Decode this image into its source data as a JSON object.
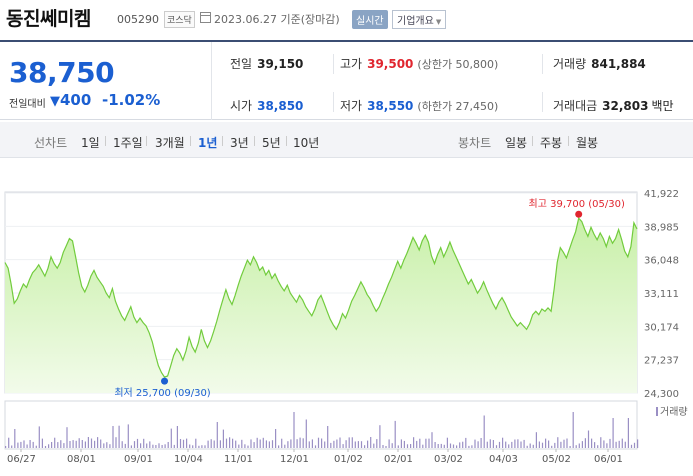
{
  "header": {
    "name": "동진쎄미켐",
    "code": "005290",
    "market": "코스닥",
    "date": "2023.06.27 기준(장마감)",
    "realtime": "실시간",
    "company_info": "기업개요"
  },
  "summary": {
    "price": "38,750",
    "change_label": "전일대비",
    "change_amount": "400",
    "change_arrow": "▼",
    "change_pct": "-1.02%",
    "prev_label": "전일",
    "prev": "39,150",
    "high_label": "고가",
    "high": "39,500",
    "upper_limit": "(상한가 50,800)",
    "volume_label": "거래량",
    "volume": "841,884",
    "open_label": "시가",
    "open": "38,850",
    "low_label": "저가",
    "low": "38,550",
    "lower_limit": "(하한가 27,450)",
    "amount_label": "거래대금",
    "amount": "32,803",
    "amount_unit": "백만"
  },
  "tabs": {
    "line_label": "선차트",
    "line": [
      "1일",
      "1주일",
      "3개월",
      "1년",
      "3년",
      "5년",
      "10년"
    ],
    "active": "1년",
    "candle_label": "봉차트",
    "candle": [
      "일봉",
      "주봉",
      "월봉"
    ]
  },
  "chart_data": {
    "type": "area",
    "colors": {
      "line": "#72cc3d",
      "fill_top": "#c8f0a8",
      "fill_bottom": "#f2fbea",
      "volume": "#9a8fc4"
    },
    "y_ticks": [
      "41,922",
      "38,985",
      "36,048",
      "33,111",
      "30,174",
      "27,237",
      "24,300"
    ],
    "ylim": [
      24300,
      41922
    ],
    "x_ticks": [
      "06/27",
      "08/01",
      "09/01",
      "10/04",
      "11/01",
      "12/01",
      "01/02",
      "02/01",
      "03/02",
      "04/03",
      "05/02",
      "06/01"
    ],
    "high_annotation": "최고 39,700 (05/30)",
    "low_annotation": "최저 25,700 (09/30)",
    "high": {
      "date": "05/30",
      "value": 39700
    },
    "low": {
      "date": "09/30",
      "value": 25700
    },
    "volume_legend": "거래량",
    "values": [
      35800,
      35300,
      33900,
      32200,
      32600,
      33300,
      33900,
      33600,
      34300,
      34900,
      35200,
      35600,
      35100,
      34600,
      35300,
      36300,
      35700,
      35300,
      35800,
      36700,
      37300,
      37900,
      37700,
      36300,
      34900,
      33700,
      33200,
      33800,
      34600,
      35100,
      34500,
      34100,
      33700,
      33100,
      32700,
      33500,
      32400,
      31700,
      31100,
      30700,
      31300,
      31900,
      31000,
      30500,
      30900,
      30500,
      30200,
      29600,
      28800,
      27700,
      26700,
      26100,
      25700,
      25800,
      26700,
      27600,
      28200,
      27800,
      27200,
      28000,
      29200,
      28400,
      27900,
      28700,
      29900,
      28900,
      28300,
      28900,
      29700,
      30600,
      31600,
      32500,
      33400,
      32600,
      32100,
      32900,
      33800,
      34600,
      35300,
      36000,
      35600,
      36300,
      35800,
      35100,
      35400,
      34700,
      35100,
      34400,
      34800,
      34200,
      33700,
      33300,
      33800,
      33100,
      32700,
      32300,
      32900,
      32500,
      31900,
      31500,
      31100,
      31700,
      32500,
      32900,
      32200,
      31500,
      30800,
      30300,
      29900,
      30500,
      31300,
      30900,
      31600,
      32400,
      32900,
      33500,
      34100,
      33600,
      33000,
      32600,
      32000,
      31500,
      31900,
      32600,
      33200,
      33900,
      34500,
      35200,
      35900,
      35300,
      36000,
      36600,
      37300,
      38000,
      37500,
      36900,
      37700,
      38200,
      37600,
      36400,
      35700,
      36500,
      37100,
      36300,
      36900,
      37600,
      36900,
      36300,
      35700,
      35100,
      34500,
      33900,
      34300,
      33700,
      33100,
      33500,
      34100,
      33400,
      32800,
      32200,
      31700,
      32300,
      32700,
      32200,
      31600,
      31000,
      30600,
      30200,
      30500,
      30200,
      29900,
      30400,
      31200,
      31500,
      31200,
      31700,
      31500,
      31800,
      31500,
      33500,
      35800,
      37100,
      36700,
      36200,
      37000,
      37800,
      38500,
      39700,
      39400,
      38700,
      38100,
      38900,
      38300,
      37800,
      38400,
      37900,
      37200,
      38100,
      37500,
      37900,
      38700,
      37800,
      36800,
      36300,
      37200,
      39300,
      38750
    ]
  }
}
